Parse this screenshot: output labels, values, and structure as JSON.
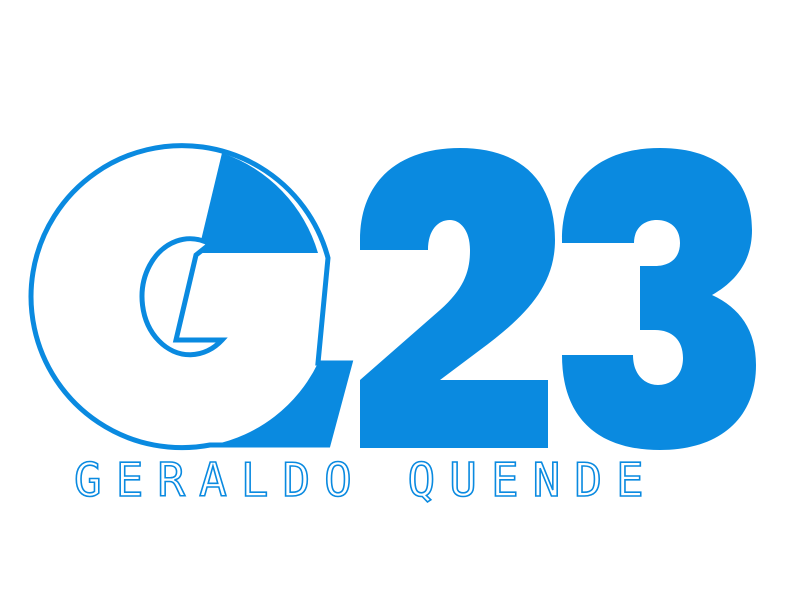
{
  "logo": {
    "monogram_letter": "G",
    "number": "23",
    "name": "GERALDO QUENDE",
    "colors": {
      "primary_blue": "#0a8ae0",
      "background": "#ffffff"
    }
  }
}
